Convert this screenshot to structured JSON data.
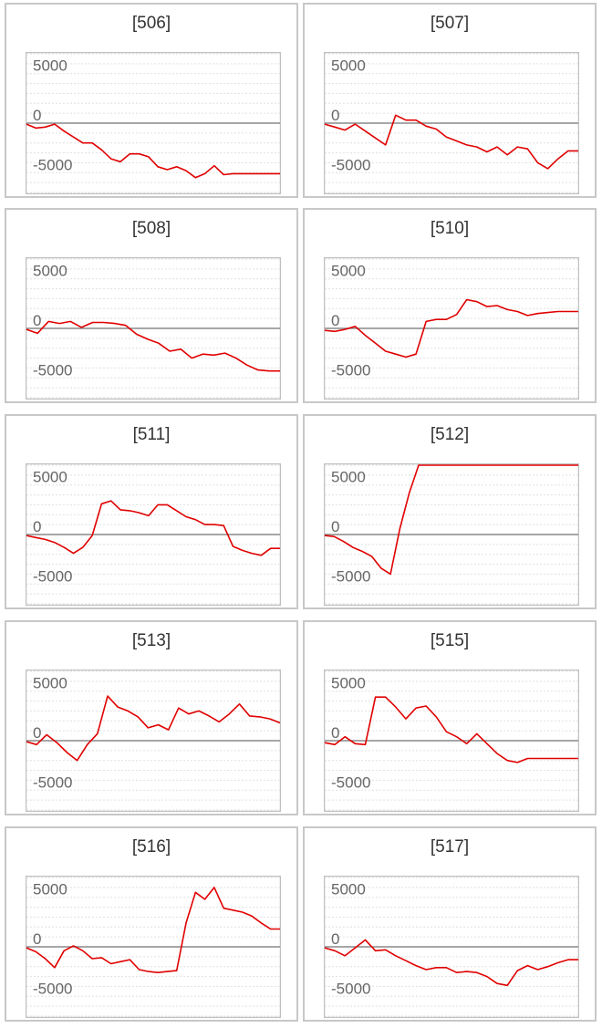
{
  "chart_data": [
    {
      "type": "line",
      "title": "[506]",
      "yticks": [
        5000,
        0,
        -5000
      ],
      "ylim": [
        -7000,
        7000
      ],
      "x": [
        0,
        1,
        2,
        3,
        4,
        5,
        6,
        7,
        8,
        9,
        10,
        11,
        12,
        13,
        14,
        15,
        16,
        17,
        18,
        19,
        20,
        21,
        22,
        23,
        24,
        25,
        26,
        27
      ],
      "series": [
        {
          "values": [
            -100,
            -500,
            -400,
            -100,
            -800,
            -1400,
            -2000,
            -2000,
            -2700,
            -3600,
            -3900,
            -3100,
            -3100,
            -3400,
            -4400,
            -4700,
            -4400,
            -4800,
            -5500,
            -5100,
            -4300,
            -5200,
            -5100,
            -5100,
            -5100,
            -5100,
            -5100,
            -5100
          ]
        }
      ]
    },
    {
      "type": "line",
      "title": "[507]",
      "yticks": [
        5000,
        0,
        -5000
      ],
      "ylim": [
        -7000,
        7000
      ],
      "x": [
        0,
        1,
        2,
        3,
        4,
        5,
        6,
        7,
        8,
        9,
        10,
        11,
        12,
        13,
        14,
        15,
        16,
        17,
        18,
        19,
        20,
        21,
        22,
        23,
        24,
        25
      ],
      "series": [
        {
          "values": [
            -100,
            -400,
            -700,
            -100,
            -800,
            -1500,
            -2200,
            800,
            300,
            300,
            -300,
            -600,
            -1400,
            -1800,
            -2200,
            -2400,
            -2900,
            -2400,
            -3200,
            -2400,
            -2600,
            -4000,
            -4600,
            -3600,
            -2800,
            -2800
          ]
        }
      ]
    },
    {
      "type": "line",
      "title": "[508]",
      "yticks": [
        5000,
        0,
        -5000
      ],
      "ylim": [
        -7000,
        7000
      ],
      "x": [
        0,
        1,
        2,
        3,
        4,
        5,
        6,
        7,
        8,
        9,
        10,
        11,
        12,
        13,
        14,
        15,
        16,
        17,
        18,
        19,
        20,
        21,
        22,
        23
      ],
      "series": [
        {
          "values": [
            -100,
            -500,
            700,
            500,
            700,
            100,
            600,
            600,
            500,
            300,
            -600,
            -1100,
            -1500,
            -2300,
            -2100,
            -3000,
            -2600,
            -2700,
            -2500,
            -3000,
            -3700,
            -4200,
            -4300,
            -4300
          ]
        }
      ]
    },
    {
      "type": "line",
      "title": "[510]",
      "yticks": [
        5000,
        0,
        -5000
      ],
      "ylim": [
        -7000,
        7000
      ],
      "x": [
        0,
        1,
        2,
        3,
        4,
        5,
        6,
        7,
        8,
        9,
        10,
        11,
        12,
        13,
        14,
        15,
        16,
        17,
        18,
        19,
        20,
        21,
        22,
        23,
        24,
        25
      ],
      "series": [
        {
          "values": [
            -200,
            -300,
            -100,
            200,
            -700,
            -1500,
            -2300,
            -2600,
            -2900,
            -2600,
            700,
            900,
            900,
            1400,
            2900,
            2700,
            2200,
            2300,
            1900,
            1700,
            1300,
            1500,
            1600,
            1700,
            1700,
            1700
          ]
        }
      ]
    },
    {
      "type": "line",
      "title": "[511]",
      "yticks": [
        5000,
        0,
        -5000
      ],
      "ylim": [
        -7000,
        7000
      ],
      "x": [
        0,
        1,
        2,
        3,
        4,
        5,
        6,
        7,
        8,
        9,
        10,
        11,
        12,
        13,
        14,
        15,
        16,
        17,
        18,
        19,
        20,
        21,
        22,
        23,
        24,
        25,
        26,
        27
      ],
      "series": [
        {
          "values": [
            -100,
            -300,
            -500,
            -800,
            -1300,
            -1900,
            -1300,
            -100,
            3100,
            3400,
            2500,
            2400,
            2200,
            1900,
            3000,
            3000,
            2400,
            1800,
            1500,
            1000,
            1000,
            900,
            -1200,
            -1600,
            -1900,
            -2100,
            -1400,
            -1400
          ]
        }
      ]
    },
    {
      "type": "line",
      "title": "[512]",
      "yticks": [
        5000,
        0,
        -5000
      ],
      "ylim": [
        -7000,
        7000
      ],
      "x": [
        0,
        1,
        2,
        3,
        4,
        5,
        6,
        7,
        8,
        9,
        10,
        11,
        12,
        13,
        14,
        15,
        16,
        17,
        18,
        19,
        20,
        21,
        22,
        23,
        24,
        25,
        26,
        27
      ],
      "series": [
        {
          "values": [
            -100,
            -200,
            -700,
            -1300,
            -1700,
            -2200,
            -3400,
            -4000,
            600,
            4200,
            7000,
            7000,
            7000,
            7000,
            7000,
            7000,
            7000,
            7000,
            7000,
            7000,
            7000,
            7000,
            7000,
            7000,
            7000,
            7000,
            7000,
            7000
          ]
        }
      ]
    },
    {
      "type": "line",
      "title": "[513]",
      "yticks": [
        5000,
        0,
        -5000
      ],
      "ylim": [
        -7000,
        7000
      ],
      "x": [
        0,
        1,
        2,
        3,
        4,
        5,
        6,
        7,
        8,
        9,
        10,
        11,
        12,
        13,
        14,
        15,
        16,
        17,
        18,
        19,
        20,
        21,
        22,
        23,
        24,
        25
      ],
      "series": [
        {
          "values": [
            -100,
            -400,
            600,
            -200,
            -1200,
            -2000,
            -400,
            700,
            4500,
            3400,
            3000,
            2400,
            1300,
            1600,
            1100,
            3300,
            2700,
            3000,
            2500,
            1900,
            2700,
            3700,
            2500,
            2400,
            2200,
            1800
          ]
        }
      ]
    },
    {
      "type": "line",
      "title": "[515]",
      "yticks": [
        5000,
        0,
        -5000
      ],
      "ylim": [
        -7000,
        7000
      ],
      "x": [
        0,
        1,
        2,
        3,
        4,
        5,
        6,
        7,
        8,
        9,
        10,
        11,
        12,
        13,
        14,
        15,
        16,
        17,
        18,
        19,
        20,
        21,
        22,
        23,
        24,
        25
      ],
      "series": [
        {
          "values": [
            -200,
            -400,
            400,
            -300,
            -400,
            4400,
            4400,
            3400,
            2200,
            3300,
            3500,
            2400,
            900,
            400,
            -300,
            700,
            -300,
            -1300,
            -2000,
            -2200,
            -1800,
            -1800,
            -1800,
            -1800,
            -1800,
            -1800
          ]
        }
      ]
    },
    {
      "type": "line",
      "title": "[516]",
      "yticks": [
        5000,
        0,
        -5000
      ],
      "ylim": [
        -7000,
        7000
      ],
      "x": [
        0,
        1,
        2,
        3,
        4,
        5,
        6,
        7,
        8,
        9,
        10,
        11,
        12,
        13,
        14,
        15,
        16,
        17,
        18,
        19,
        20,
        21,
        22,
        23,
        24,
        25,
        26,
        27
      ],
      "series": [
        {
          "values": [
            -100,
            -500,
            -1200,
            -2100,
            -400,
            100,
            -400,
            -1200,
            -1100,
            -1700,
            -1500,
            -1300,
            -2300,
            -2500,
            -2600,
            -2500,
            -2400,
            2400,
            5500,
            4800,
            6000,
            3900,
            3700,
            3500,
            3100,
            2400,
            1800,
            1800
          ]
        }
      ]
    },
    {
      "type": "line",
      "title": "[517]",
      "yticks": [
        5000,
        0,
        -5000
      ],
      "ylim": [
        -7000,
        7000
      ],
      "x": [
        0,
        1,
        2,
        3,
        4,
        5,
        6,
        7,
        8,
        9,
        10,
        11,
        12,
        13,
        14,
        15,
        16,
        17,
        18,
        19,
        20,
        21,
        22,
        23,
        24,
        25
      ],
      "series": [
        {
          "values": [
            -100,
            -400,
            -900,
            -100,
            700,
            -400,
            -300,
            -900,
            -1400,
            -1900,
            -2300,
            -2100,
            -2100,
            -2600,
            -2500,
            -2600,
            -3000,
            -3700,
            -3900,
            -2400,
            -1900,
            -2300,
            -2000,
            -1600,
            -1300,
            -1300
          ]
        }
      ]
    }
  ],
  "colors": {
    "line": "#e00000",
    "zero_line": "#888888",
    "grid": "#e0e0e0",
    "frame": "#c0c0c0"
  }
}
